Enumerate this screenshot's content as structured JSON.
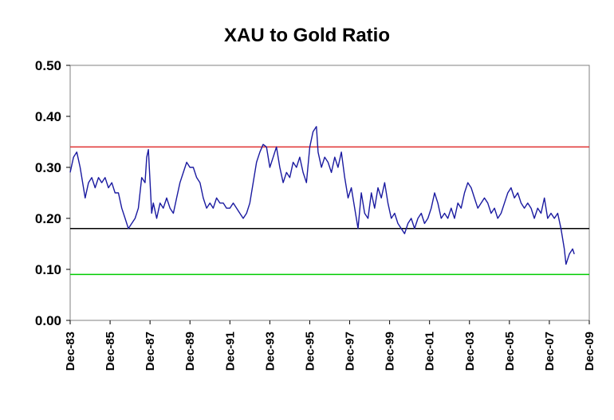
{
  "chart_data": {
    "type": "line",
    "title": "XAU to Gold Ratio",
    "xlabel": "",
    "ylabel": "",
    "ylim": [
      0.0,
      0.5
    ],
    "yticks": [
      "0.00",
      "0.10",
      "0.20",
      "0.30",
      "0.40",
      "0.50"
    ],
    "xticks": [
      "Dec-83",
      "Dec-85",
      "Dec-87",
      "Dec-89",
      "Dec-91",
      "Dec-93",
      "Dec-95",
      "Dec-97",
      "Dec-99",
      "Dec-01",
      "Dec-03",
      "Dec-05",
      "Dec-07",
      "Dec-09"
    ],
    "xlim": [
      "1983-12",
      "2009-12"
    ],
    "grid": false,
    "legend": "none",
    "reference_lines": [
      {
        "y": 0.34,
        "color": "#e03030"
      },
      {
        "y": 0.18,
        "color": "#000000"
      },
      {
        "y": 0.09,
        "color": "#00cc00"
      }
    ],
    "series": [
      {
        "color": "#1a1aa0",
        "points": [
          [
            "1983-12",
            0.29
          ],
          [
            "1984-02",
            0.32
          ],
          [
            "1984-04",
            0.33
          ],
          [
            "1984-06",
            0.3
          ],
          [
            "1984-08",
            0.26
          ],
          [
            "1984-09",
            0.24
          ],
          [
            "1984-11",
            0.27
          ],
          [
            "1985-01",
            0.28
          ],
          [
            "1985-03",
            0.26
          ],
          [
            "1985-05",
            0.28
          ],
          [
            "1985-07",
            0.27
          ],
          [
            "1985-09",
            0.28
          ],
          [
            "1985-11",
            0.26
          ],
          [
            "1986-01",
            0.27
          ],
          [
            "1986-03",
            0.25
          ],
          [
            "1986-05",
            0.25
          ],
          [
            "1986-07",
            0.22
          ],
          [
            "1986-09",
            0.2
          ],
          [
            "1986-11",
            0.18
          ],
          [
            "1987-01",
            0.19
          ],
          [
            "1987-03",
            0.2
          ],
          [
            "1987-05",
            0.22
          ],
          [
            "1987-07",
            0.28
          ],
          [
            "1987-09",
            0.27
          ],
          [
            "1987-10",
            0.32
          ],
          [
            "1987-11",
            0.335
          ],
          [
            "1988-01",
            0.21
          ],
          [
            "1988-02",
            0.23
          ],
          [
            "1988-04",
            0.2
          ],
          [
            "1988-06",
            0.23
          ],
          [
            "1988-08",
            0.22
          ],
          [
            "1988-10",
            0.24
          ],
          [
            "1988-12",
            0.22
          ],
          [
            "1989-02",
            0.21
          ],
          [
            "1989-04",
            0.24
          ],
          [
            "1989-06",
            0.27
          ],
          [
            "1989-08",
            0.29
          ],
          [
            "1989-10",
            0.31
          ],
          [
            "1989-12",
            0.3
          ],
          [
            "1990-02",
            0.3
          ],
          [
            "1990-04",
            0.28
          ],
          [
            "1990-06",
            0.27
          ],
          [
            "1990-08",
            0.24
          ],
          [
            "1990-10",
            0.22
          ],
          [
            "1990-12",
            0.23
          ],
          [
            "1991-02",
            0.22
          ],
          [
            "1991-04",
            0.24
          ],
          [
            "1991-06",
            0.23
          ],
          [
            "1991-08",
            0.23
          ],
          [
            "1991-10",
            0.22
          ],
          [
            "1991-12",
            0.22
          ],
          [
            "1992-02",
            0.23
          ],
          [
            "1992-04",
            0.22
          ],
          [
            "1992-06",
            0.21
          ],
          [
            "1992-08",
            0.2
          ],
          [
            "1992-10",
            0.21
          ],
          [
            "1992-12",
            0.23
          ],
          [
            "1993-02",
            0.27
          ],
          [
            "1993-04",
            0.31
          ],
          [
            "1993-06",
            0.33
          ],
          [
            "1993-08",
            0.345
          ],
          [
            "1993-10",
            0.34
          ],
          [
            "1993-12",
            0.3
          ],
          [
            "1994-02",
            0.32
          ],
          [
            "1994-04",
            0.34
          ],
          [
            "1994-06",
            0.3
          ],
          [
            "1994-08",
            0.27
          ],
          [
            "1994-10",
            0.29
          ],
          [
            "1994-12",
            0.28
          ],
          [
            "1995-02",
            0.31
          ],
          [
            "1995-04",
            0.3
          ],
          [
            "1995-06",
            0.32
          ],
          [
            "1995-08",
            0.29
          ],
          [
            "1995-10",
            0.27
          ],
          [
            "1995-12",
            0.34
          ],
          [
            "1996-02",
            0.37
          ],
          [
            "1996-04",
            0.38
          ],
          [
            "1996-05",
            0.33
          ],
          [
            "1996-07",
            0.3
          ],
          [
            "1996-09",
            0.32
          ],
          [
            "1996-11",
            0.31
          ],
          [
            "1997-01",
            0.29
          ],
          [
            "1997-03",
            0.32
          ],
          [
            "1997-05",
            0.3
          ],
          [
            "1997-07",
            0.33
          ],
          [
            "1997-09",
            0.28
          ],
          [
            "1997-11",
            0.24
          ],
          [
            "1998-01",
            0.26
          ],
          [
            "1998-03",
            0.22
          ],
          [
            "1998-05",
            0.18
          ],
          [
            "1998-07",
            0.25
          ],
          [
            "1998-09",
            0.21
          ],
          [
            "1998-11",
            0.2
          ],
          [
            "1999-01",
            0.25
          ],
          [
            "1999-03",
            0.22
          ],
          [
            "1999-05",
            0.26
          ],
          [
            "1999-07",
            0.24
          ],
          [
            "1999-09",
            0.27
          ],
          [
            "1999-11",
            0.23
          ],
          [
            "2000-01",
            0.2
          ],
          [
            "2000-03",
            0.21
          ],
          [
            "2000-05",
            0.19
          ],
          [
            "2000-07",
            0.18
          ],
          [
            "2000-09",
            0.17
          ],
          [
            "2000-11",
            0.19
          ],
          [
            "2001-01",
            0.2
          ],
          [
            "2001-03",
            0.18
          ],
          [
            "2001-05",
            0.2
          ],
          [
            "2001-07",
            0.21
          ],
          [
            "2001-09",
            0.19
          ],
          [
            "2001-11",
            0.2
          ],
          [
            "2002-01",
            0.22
          ],
          [
            "2002-03",
            0.25
          ],
          [
            "2002-05",
            0.23
          ],
          [
            "2002-07",
            0.2
          ],
          [
            "2002-09",
            0.21
          ],
          [
            "2002-11",
            0.2
          ],
          [
            "2003-01",
            0.22
          ],
          [
            "2003-03",
            0.2
          ],
          [
            "2003-05",
            0.23
          ],
          [
            "2003-07",
            0.22
          ],
          [
            "2003-09",
            0.25
          ],
          [
            "2003-11",
            0.27
          ],
          [
            "2004-01",
            0.26
          ],
          [
            "2004-03",
            0.24
          ],
          [
            "2004-05",
            0.22
          ],
          [
            "2004-07",
            0.23
          ],
          [
            "2004-09",
            0.24
          ],
          [
            "2004-11",
            0.23
          ],
          [
            "2005-01",
            0.21
          ],
          [
            "2005-03",
            0.22
          ],
          [
            "2005-05",
            0.2
          ],
          [
            "2005-07",
            0.21
          ],
          [
            "2005-09",
            0.23
          ],
          [
            "2005-11",
            0.25
          ],
          [
            "2006-01",
            0.26
          ],
          [
            "2006-03",
            0.24
          ],
          [
            "2006-05",
            0.25
          ],
          [
            "2006-07",
            0.23
          ],
          [
            "2006-09",
            0.22
          ],
          [
            "2006-11",
            0.23
          ],
          [
            "2007-01",
            0.22
          ],
          [
            "2007-03",
            0.2
          ],
          [
            "2007-05",
            0.22
          ],
          [
            "2007-07",
            0.21
          ],
          [
            "2007-09",
            0.24
          ],
          [
            "2007-11",
            0.2
          ],
          [
            "2008-01",
            0.21
          ],
          [
            "2008-03",
            0.2
          ],
          [
            "2008-05",
            0.21
          ],
          [
            "2008-07",
            0.18
          ],
          [
            "2008-09",
            0.14
          ],
          [
            "2008-10",
            0.11
          ],
          [
            "2008-12",
            0.13
          ],
          [
            "2009-02",
            0.14
          ],
          [
            "2009-03",
            0.13
          ]
        ]
      }
    ]
  }
}
